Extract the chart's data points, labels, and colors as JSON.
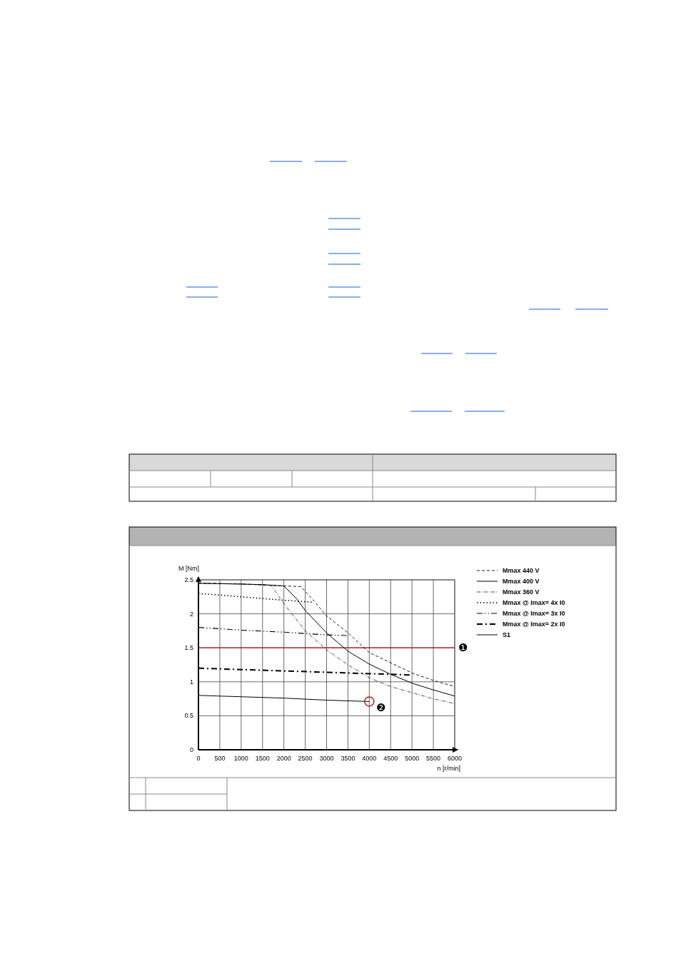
{
  "chart_data": {
    "type": "line",
    "xlabel": "n [r/min]",
    "ylabel": "M [Nm]",
    "xlim": [
      0,
      6000
    ],
    "xticks": [
      0,
      500,
      1000,
      1500,
      2000,
      2500,
      3000,
      3500,
      4000,
      4500,
      5000,
      5500,
      6000
    ],
    "ylim": [
      0,
      2.5
    ],
    "yticks": [
      0,
      0.5,
      1,
      1.5,
      2,
      2.5
    ],
    "grid": true,
    "legend": "right",
    "marker": "none",
    "series": [
      {
        "name": "Mmax 440 V",
        "color": "#000000",
        "line_style": "dashed",
        "x": [
          0,
          1000,
          1600,
          2000,
          2400,
          2700,
          3000,
          3500,
          4000,
          4500,
          5000,
          5500,
          6000
        ],
        "values": [
          2.45,
          2.44,
          2.42,
          2.41,
          2.4,
          2.19,
          1.97,
          1.72,
          1.43,
          1.28,
          1.13,
          1.02,
          0.93
        ]
      },
      {
        "name": "Mmax 400 V",
        "color": "#000000",
        "line_style": "solid",
        "x": [
          0,
          1500,
          2000,
          2300,
          2500,
          3000,
          3500,
          4000,
          4500,
          5000,
          5500,
          6000
        ],
        "values": [
          2.45,
          2.43,
          2.41,
          2.22,
          2.05,
          1.72,
          1.45,
          1.26,
          1.11,
          0.98,
          0.88,
          0.79
        ]
      },
      {
        "name": "Mmax 360 V",
        "color": "#000000",
        "line_style": "dashdot",
        "x": [
          0,
          1000,
          1700,
          2000,
          2500,
          3000,
          3500,
          4000,
          4500,
          5000,
          5500,
          6000
        ],
        "values": [
          2.45,
          2.44,
          2.42,
          2.15,
          1.75,
          1.47,
          1.25,
          1.06,
          0.93,
          0.84,
          0.75,
          0.68
        ]
      },
      {
        "name": "Mmax @ Imax= 4x I0",
        "color": "#000000",
        "line_style": "dotted",
        "x": [
          0,
          1000,
          2000,
          2700
        ],
        "values": [
          2.3,
          2.25,
          2.2,
          2.17
        ]
      },
      {
        "name": "Mmax @ Imax= 3x I0",
        "color": "#000000",
        "line_style": "dashdotdot",
        "x": [
          0,
          1000,
          2000,
          2500,
          3000,
          3500
        ],
        "values": [
          1.8,
          1.76,
          1.73,
          1.71,
          1.69,
          1.68
        ]
      },
      {
        "name": "Mmax @ Imax= 2x I0",
        "color": "#000000",
        "line_style": "dashdotheavy",
        "x": [
          0,
          1000,
          2000,
          3000,
          4000,
          5000
        ],
        "values": [
          1.2,
          1.18,
          1.16,
          1.14,
          1.12,
          1.1
        ]
      },
      {
        "name": "S1",
        "color": "#000000",
        "line_style": "solid",
        "x": [
          0,
          1000,
          2000,
          3000,
          4000
        ],
        "values": [
          0.8,
          0.78,
          0.76,
          0.73,
          0.71
        ]
      }
    ],
    "ref_lines": [
      {
        "axis": "y",
        "value": 1.5,
        "label": "❶",
        "color": "#b22222"
      }
    ],
    "annotations": [
      {
        "text": "❷",
        "x": 4000,
        "y": 0.71
      }
    ]
  }
}
